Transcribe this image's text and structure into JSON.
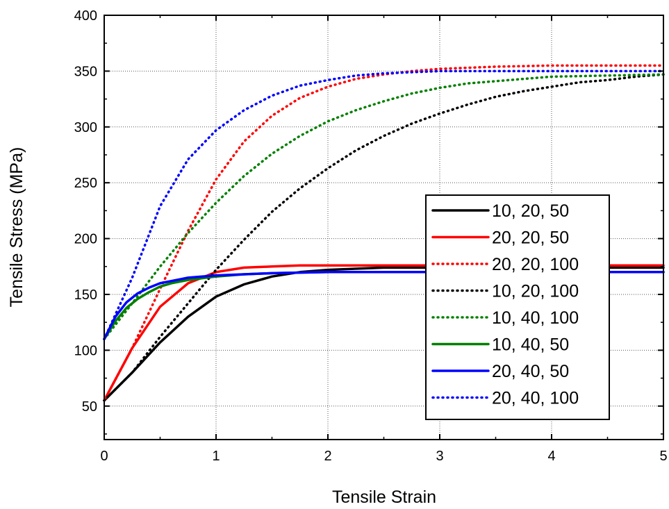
{
  "chart_data": {
    "type": "line",
    "title": "",
    "xlabel": "Tensile Strain",
    "ylabel": "Tensile Stress (MPa)",
    "xlim": [
      0,
      5
    ],
    "ylim": [
      20,
      400
    ],
    "x_ticks": [
      "0",
      "1",
      "2",
      "3",
      "4",
      "5"
    ],
    "y_ticks": [
      "50",
      "100",
      "150",
      "200",
      "250",
      "300",
      "350",
      "400"
    ],
    "grid": true,
    "legend_position": "right",
    "series": [
      {
        "name": "10, 20, 50",
        "color": "#000000",
        "style": "solid",
        "x": [
          0,
          0.25,
          0.5,
          0.75,
          1,
          1.25,
          1.5,
          1.75,
          2,
          2.5,
          3,
          3.5,
          4,
          4.5,
          5
        ],
        "y": [
          55,
          80,
          107,
          130,
          148,
          159,
          166,
          170,
          172,
          174,
          174,
          174,
          174,
          174,
          174
        ]
      },
      {
        "name": "20, 20, 50",
        "color": "#ff0000",
        "style": "solid",
        "x": [
          0,
          0.25,
          0.5,
          0.75,
          1,
          1.25,
          1.5,
          1.75,
          2,
          2.5,
          3,
          3.5,
          4,
          4.5,
          5
        ],
        "y": [
          55,
          102,
          139,
          160,
          170,
          174,
          175,
          176,
          176,
          176,
          176,
          176,
          176,
          176,
          176
        ]
      },
      {
        "name": "20, 20, 100",
        "color": "#ff0000",
        "style": "dotted",
        "x": [
          0,
          0.25,
          0.5,
          0.75,
          1,
          1.25,
          1.5,
          1.75,
          2,
          2.25,
          2.5,
          2.75,
          3,
          3.5,
          4,
          4.5,
          5
        ],
        "y": [
          55,
          102,
          155,
          207,
          253,
          287,
          310,
          326,
          336,
          343,
          347,
          350,
          352,
          354,
          355,
          355,
          355
        ]
      },
      {
        "name": "10, 20, 100",
        "color": "#000000",
        "style": "dotted",
        "x": [
          0,
          0.25,
          0.5,
          0.75,
          1,
          1.25,
          1.5,
          1.75,
          2,
          2.25,
          2.5,
          2.75,
          3,
          3.25,
          3.5,
          3.75,
          4,
          4.25,
          4.5,
          4.75,
          5
        ],
        "y": [
          55,
          80,
          112,
          142,
          172,
          199,
          224,
          245,
          263,
          279,
          292,
          303,
          312,
          320,
          327,
          332,
          336,
          340,
          342,
          345,
          347
        ]
      },
      {
        "name": "10, 40, 100",
        "color": "#008000",
        "style": "dotted",
        "x": [
          0,
          0.25,
          0.5,
          0.75,
          1,
          1.25,
          1.5,
          1.75,
          2,
          2.25,
          2.5,
          2.75,
          3,
          3.25,
          3.5,
          3.75,
          4,
          4.5,
          5
        ],
        "y": [
          110,
          142,
          175,
          205,
          232,
          256,
          276,
          292,
          305,
          315,
          323,
          330,
          335,
          339,
          341,
          343,
          345,
          346,
          347
        ]
      },
      {
        "name": "10, 40, 50",
        "color": "#008000",
        "style": "solid",
        "x": [
          0,
          0.1,
          0.2,
          0.3,
          0.4,
          0.5,
          0.6,
          0.75,
          1,
          1.25,
          1.5,
          2,
          2.5,
          3,
          4,
          5
        ],
        "y": [
          110,
          126,
          138,
          146,
          152,
          157,
          160,
          163,
          166,
          168,
          169,
          170,
          170,
          170,
          170,
          170
        ]
      },
      {
        "name": "20, 40, 50",
        "color": "#0000ff",
        "style": "solid",
        "x": [
          0,
          0.1,
          0.2,
          0.3,
          0.4,
          0.5,
          0.6,
          0.75,
          1,
          1.25,
          1.5,
          2,
          2.5,
          3,
          4,
          5
        ],
        "y": [
          110,
          130,
          143,
          151,
          156,
          160,
          162,
          165,
          167,
          168,
          169,
          170,
          170,
          170,
          170,
          170
        ]
      },
      {
        "name": "20, 40, 100",
        "color": "#0000ff",
        "style": "dotted",
        "x": [
          0,
          0.25,
          0.5,
          0.75,
          1,
          1.25,
          1.5,
          1.75,
          2,
          2.25,
          2.5,
          3,
          3.5,
          4,
          4.5,
          5
        ],
        "y": [
          110,
          165,
          229,
          271,
          297,
          315,
          328,
          337,
          342,
          346,
          348,
          350,
          350,
          350,
          350,
          350
        ]
      }
    ]
  }
}
